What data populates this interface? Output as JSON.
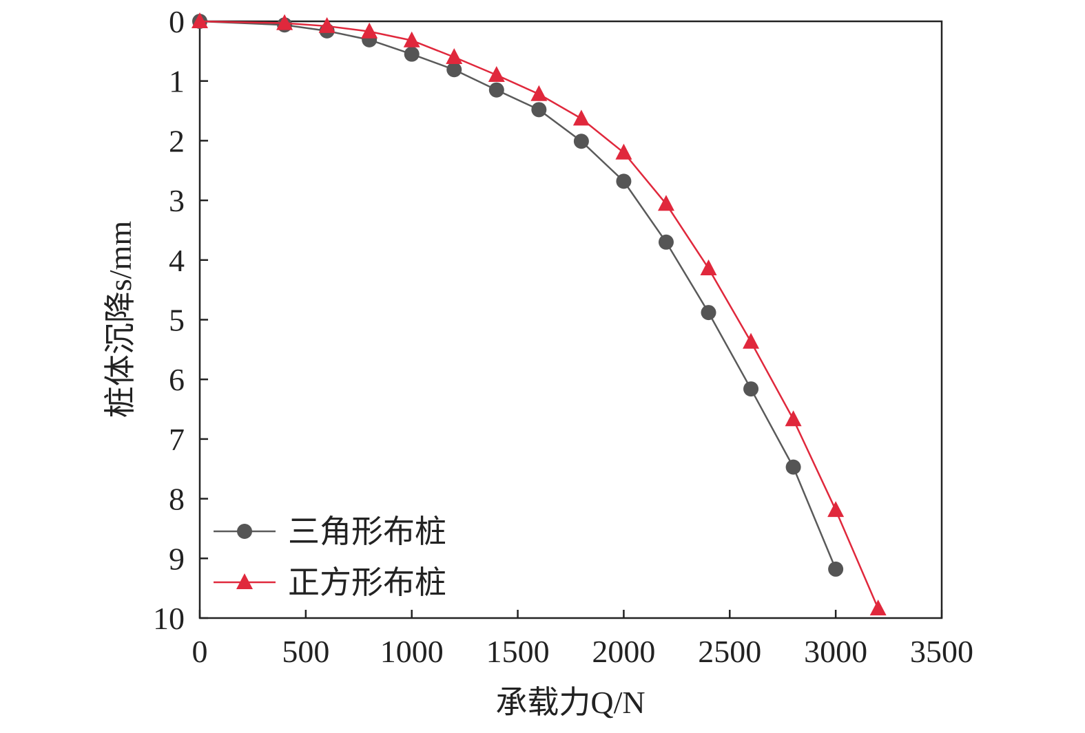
{
  "chart_data": {
    "type": "line",
    "xlabel": "承载力Q/N",
    "ylabel": "桩体沉降s/mm",
    "xlim": [
      0,
      3500
    ],
    "ylim": [
      0,
      10
    ],
    "y_inverted": true,
    "grid": false,
    "legend_position": "bottom-left",
    "x_ticks": [
      "0",
      "500",
      "1000",
      "1500",
      "2000",
      "2500",
      "3000",
      "3500"
    ],
    "y_ticks": [
      "0",
      "1",
      "2",
      "3",
      "4",
      "5",
      "6",
      "7",
      "8",
      "9",
      "10"
    ],
    "series": [
      {
        "name": "三角形布桩",
        "marker": "circle",
        "color": "#5a5a5a",
        "marker_color": "#555555",
        "x": [
          0,
          400,
          600,
          800,
          1000,
          1200,
          1400,
          1600,
          1800,
          2000,
          2200,
          2400,
          2600,
          2800,
          3000
        ],
        "y": [
          0,
          0.06,
          0.16,
          0.31,
          0.55,
          0.81,
          1.15,
          1.48,
          2.01,
          2.68,
          3.7,
          4.88,
          6.16,
          7.47,
          9.18
        ]
      },
      {
        "name": "正方形布桩",
        "marker": "triangle",
        "color": "#e0283c",
        "marker_color": "#e0283c",
        "x": [
          0,
          400,
          600,
          800,
          1000,
          1200,
          1400,
          1600,
          1800,
          2000,
          2200,
          2400,
          2600,
          2800,
          3000,
          3200
        ],
        "y": [
          0,
          0.03,
          0.08,
          0.17,
          0.32,
          0.6,
          0.9,
          1.22,
          1.63,
          2.2,
          3.06,
          4.14,
          5.37,
          6.67,
          8.19,
          9.84
        ]
      }
    ]
  }
}
